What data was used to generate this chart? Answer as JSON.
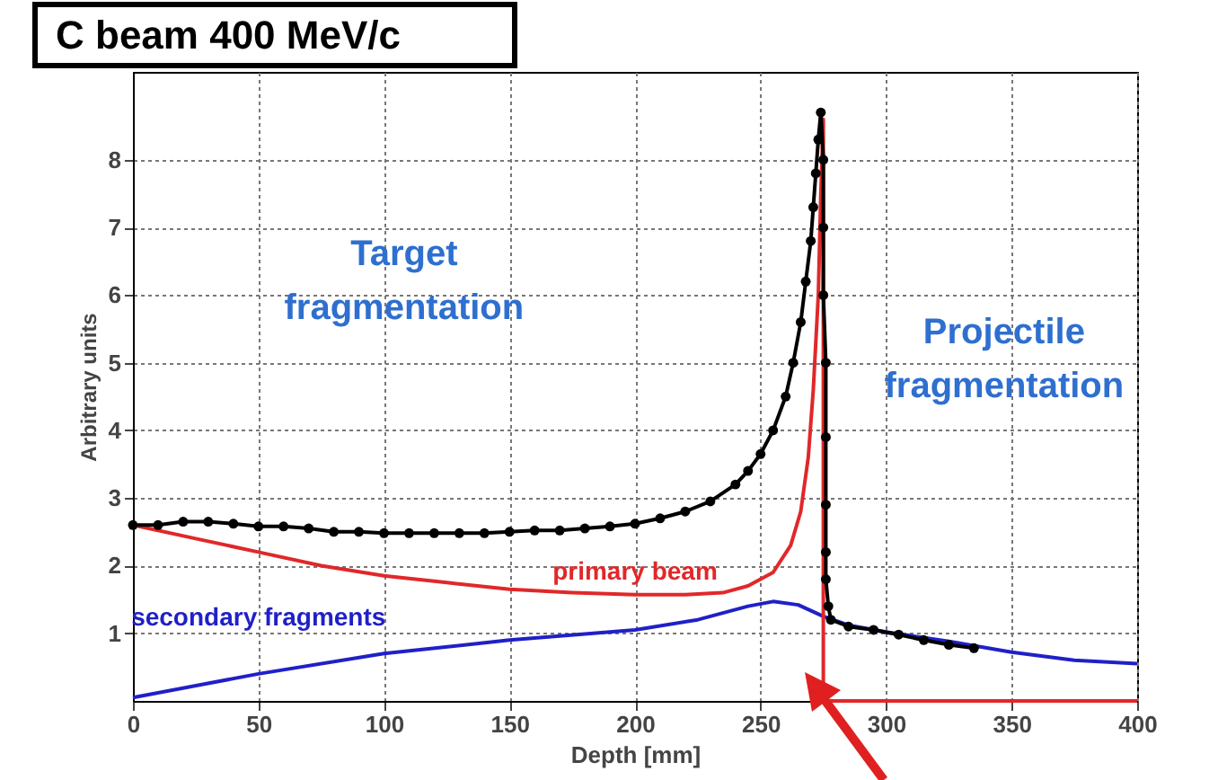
{
  "chart_data": {
    "type": "line",
    "title": "C beam 400 MeV/c",
    "xlabel": "Depth [mm]",
    "ylabel": "Arbitrary units",
    "xlim": [
      0,
      400
    ],
    "xticks": [
      0,
      50,
      100,
      150,
      200,
      250,
      300,
      350,
      400
    ],
    "ylim": [
      0,
      9.3
    ],
    "yticks": [
      1,
      2,
      3,
      4,
      5,
      6,
      7,
      8
    ],
    "grid": true,
    "line_style": "solid",
    "annotations": [
      "Target fragmentation",
      "Projectile fragmentation"
    ],
    "series": [
      {
        "color": "#000000",
        "marker": "circle",
        "x": [
          0,
          10,
          20,
          30,
          40,
          50,
          60,
          70,
          80,
          90,
          100,
          110,
          120,
          130,
          140,
          150,
          160,
          170,
          180,
          190,
          200,
          210,
          220,
          230,
          240,
          245,
          250,
          255,
          260,
          263,
          266,
          268,
          270,
          271,
          272,
          273,
          274,
          275,
          275,
          275,
          276,
          276,
          276,
          276,
          276,
          277,
          278,
          285,
          295,
          305,
          315,
          325,
          335
        ],
        "values": [
          2.6,
          2.6,
          2.65,
          2.65,
          2.62,
          2.58,
          2.58,
          2.55,
          2.5,
          2.5,
          2.48,
          2.48,
          2.48,
          2.48,
          2.48,
          2.5,
          2.52,
          2.52,
          2.55,
          2.58,
          2.62,
          2.7,
          2.8,
          2.95,
          3.2,
          3.4,
          3.65,
          4.0,
          4.5,
          5.0,
          5.6,
          6.2,
          6.8,
          7.3,
          7.8,
          8.3,
          8.7,
          8.0,
          7.0,
          6.0,
          5.0,
          3.9,
          2.9,
          2.2,
          1.8,
          1.4,
          1.2,
          1.1,
          1.05,
          0.98,
          0.9,
          0.83,
          0.78
        ]
      },
      {
        "name": "primary beam",
        "color": "#e0282a",
        "x": [
          0,
          25,
          50,
          75,
          100,
          125,
          150,
          175,
          200,
          220,
          235,
          245,
          255,
          262,
          266,
          269,
          271,
          273,
          274,
          275,
          275,
          400
        ],
        "values": [
          2.6,
          2.4,
          2.2,
          2.0,
          1.85,
          1.75,
          1.65,
          1.6,
          1.57,
          1.57,
          1.6,
          1.7,
          1.9,
          2.3,
          2.8,
          3.6,
          4.6,
          6.0,
          7.5,
          8.6,
          0,
          0
        ]
      },
      {
        "name": "secondary fragments",
        "color": "#2020c8",
        "x": [
          0,
          50,
          100,
          150,
          200,
          225,
          245,
          255,
          265,
          275,
          285,
          300,
          325,
          350,
          375,
          400
        ],
        "values": [
          0.05,
          0.4,
          0.7,
          0.9,
          1.05,
          1.2,
          1.4,
          1.47,
          1.42,
          1.25,
          1.12,
          1.02,
          0.88,
          0.72,
          0.6,
          0.55
        ]
      }
    ]
  }
}
